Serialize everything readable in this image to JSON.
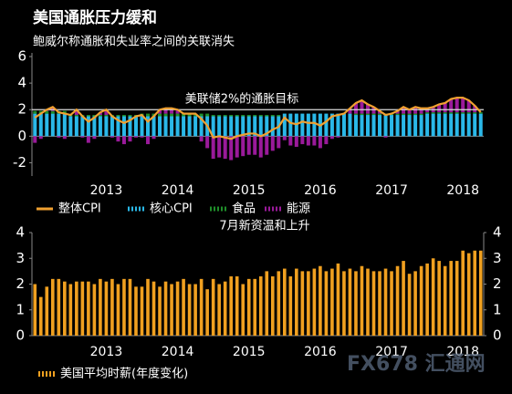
{
  "chart_data": [
    {
      "type": "bar",
      "stacked": true,
      "title": "美国通胀压力缓和",
      "subtitle": "鲍威尔称通胀和失业率之间的关联消失",
      "annotation": "美联储2%的通胀目标",
      "target_line": 2,
      "categories": [
        null,
        null,
        null,
        null,
        null,
        null,
        null,
        null,
        null,
        null,
        null,
        null,
        "2013",
        null,
        null,
        null,
        null,
        null,
        null,
        null,
        null,
        null,
        null,
        null,
        "2014",
        null,
        null,
        null,
        null,
        null,
        null,
        null,
        null,
        null,
        null,
        null,
        "2015",
        null,
        null,
        null,
        null,
        null,
        null,
        null,
        null,
        null,
        null,
        null,
        "2016",
        null,
        null,
        null,
        null,
        null,
        null,
        null,
        null,
        null,
        null,
        null,
        "2017",
        null,
        null,
        null,
        null,
        null,
        null,
        null,
        null,
        null,
        null,
        null,
        "2018",
        null,
        null,
        null
      ],
      "ylim": [
        -3,
        6
      ],
      "yticks": [
        -2,
        0,
        2,
        4,
        6
      ],
      "series": [
        {
          "name": "整体CPI",
          "type": "line",
          "color": "#f0a030",
          "values": [
            1.4,
            1.7,
            2.0,
            2.2,
            1.8,
            1.7,
            1.6,
            2.0,
            1.5,
            1.1,
            1.4,
            1.8,
            2.0,
            1.5,
            1.2,
            1.0,
            1.2,
            1.5,
            1.6,
            1.1,
            1.5,
            2.0,
            2.1,
            2.1,
            2.0,
            1.7,
            1.7,
            1.7,
            1.3,
            0.8,
            -0.1,
            0.0,
            -0.1,
            -0.2,
            0.0,
            0.1,
            0.2,
            0.2,
            0.0,
            0.2,
            0.5,
            0.7,
            1.4,
            1.0,
            0.9,
            1.1,
            1.0,
            1.0,
            0.8,
            1.1,
            1.5,
            1.6,
            1.7,
            2.1,
            2.5,
            2.7,
            2.4,
            2.2,
            1.9,
            1.6,
            1.7,
            1.9,
            2.2,
            2.0,
            2.2,
            2.1,
            2.1,
            2.2,
            2.4,
            2.5,
            2.8,
            2.9,
            2.9,
            2.7,
            2.3,
            1.8
          ]
        },
        {
          "name": "核心CPI",
          "type": "bar",
          "color": "#2ab8e8",
          "values": [
            1.7,
            1.7,
            1.7,
            1.7,
            1.7,
            1.7,
            1.5,
            1.5,
            1.5,
            1.5,
            1.5,
            1.5,
            1.5,
            1.5,
            1.5,
            1.5,
            1.5,
            1.5,
            1.5,
            1.5,
            1.5,
            1.5,
            1.5,
            1.5,
            1.5,
            1.5,
            1.5,
            1.5,
            1.5,
            1.5,
            1.5,
            1.5,
            1.5,
            1.5,
            1.5,
            1.5,
            1.5,
            1.5,
            1.5,
            1.5,
            1.5,
            1.5,
            1.7,
            1.7,
            1.7,
            1.7,
            1.7,
            1.7,
            1.7,
            1.7,
            1.7,
            1.7,
            1.7,
            1.7,
            1.6,
            1.6,
            1.6,
            1.6,
            1.6,
            1.6,
            1.6,
            1.6,
            1.6,
            1.6,
            1.6,
            1.6,
            1.7,
            1.7,
            1.7,
            1.7,
            1.7,
            1.7,
            1.7,
            1.7,
            1.7,
            1.7
          ]
        },
        {
          "name": "食品",
          "type": "bar",
          "color": "#1f8f2a",
          "values": [
            0.2,
            0.2,
            0.2,
            0.2,
            0.2,
            0.2,
            0.1,
            0.1,
            0.1,
            0.1,
            0.1,
            0.1,
            0.1,
            0.1,
            0.1,
            0.1,
            0.1,
            0.1,
            0.2,
            0.2,
            0.2,
            0.2,
            0.2,
            0.2,
            0.2,
            0.2,
            0.2,
            0.2,
            0.2,
            0.2,
            0.1,
            0.1,
            0.1,
            0.1,
            0.1,
            0.1,
            0.1,
            0.1,
            0.1,
            0.1,
            0.1,
            0.1,
            0,
            0,
            0,
            0,
            0,
            0,
            0,
            0,
            0,
            0,
            0,
            0,
            0.1,
            0.1,
            0.1,
            0.1,
            0.1,
            0.1,
            0.1,
            0.1,
            0.1,
            0.1,
            0.1,
            0.1,
            0.1,
            0.1,
            0.1,
            0.1,
            0.1,
            0.1,
            0.1,
            0.1,
            0.1,
            0.1
          ]
        },
        {
          "name": "能源",
          "type": "bar",
          "color": "#9a1a9a",
          "values": [
            -0.5,
            -0.2,
            0.1,
            0.3,
            -0.1,
            -0.2,
            0,
            0.4,
            -0.1,
            -0.5,
            -0.2,
            0.2,
            0.4,
            -0.1,
            -0.4,
            -0.6,
            -0.4,
            -0.1,
            -0.1,
            -0.6,
            -0.2,
            0.3,
            0.4,
            0.4,
            0.3,
            0,
            0,
            0,
            -0.4,
            -0.9,
            -1.7,
            -1.6,
            -1.7,
            -1.8,
            -1.6,
            -1.5,
            -1.4,
            -1.4,
            -1.6,
            -1.4,
            -1.1,
            -0.9,
            -0.3,
            -0.7,
            -0.8,
            -0.6,
            -0.7,
            -0.7,
            -0.9,
            -0.6,
            -0.2,
            -0.1,
            0,
            0.4,
            0.8,
            1.0,
            0.7,
            0.5,
            0.2,
            -0.1,
            0,
            0.2,
            0.5,
            0.3,
            0.5,
            0.4,
            0.3,
            0.4,
            0.6,
            0.7,
            1.0,
            1.1,
            1.1,
            0.9,
            0.5,
            0
          ]
        }
      ]
    },
    {
      "type": "bar",
      "annotation": "7月新资温和上升",
      "watermark": "FX678 汇通网",
      "categories": [
        null,
        null,
        null,
        null,
        null,
        null,
        null,
        null,
        null,
        null,
        null,
        null,
        "2013",
        null,
        null,
        null,
        null,
        null,
        null,
        null,
        null,
        null,
        null,
        null,
        "2014",
        null,
        null,
        null,
        null,
        null,
        null,
        null,
        null,
        null,
        null,
        null,
        "2015",
        null,
        null,
        null,
        null,
        null,
        null,
        null,
        null,
        null,
        null,
        null,
        "2016",
        null,
        null,
        null,
        null,
        null,
        null,
        null,
        null,
        null,
        null,
        null,
        "2017",
        null,
        null,
        null,
        null,
        null,
        null,
        null,
        null,
        null,
        null,
        null,
        "2018",
        null,
        null,
        null
      ],
      "ylim": [
        0,
        4
      ],
      "yticks": [
        0,
        1,
        2,
        3,
        4
      ],
      "y2lim": [
        0,
        4
      ],
      "y2ticks": [
        0,
        1,
        2,
        3,
        4
      ],
      "series": [
        {
          "name": "美国平均时薪(年度变化)",
          "color": "#f0a020",
          "values": [
            2.0,
            1.5,
            1.9,
            2.2,
            2.2,
            2.1,
            2.0,
            2.1,
            2.1,
            2.1,
            2.0,
            2.2,
            2.1,
            2.2,
            2.0,
            2.2,
            2.2,
            1.9,
            1.9,
            2.2,
            2.1,
            1.9,
            2.1,
            2.0,
            2.1,
            2.2,
            2.0,
            2.0,
            2.2,
            1.8,
            2.2,
            2.0,
            2.1,
            2.3,
            2.3,
            2.0,
            2.2,
            2.2,
            2.3,
            2.5,
            2.3,
            2.5,
            2.6,
            2.3,
            2.6,
            2.5,
            2.5,
            2.6,
            2.7,
            2.5,
            2.6,
            2.8,
            2.5,
            2.6,
            2.5,
            2.7,
            2.6,
            2.5,
            2.5,
            2.6,
            2.5,
            2.7,
            2.9,
            2.4,
            2.5,
            2.7,
            2.8,
            3.0,
            2.9,
            2.7,
            2.9,
            2.9,
            3.3,
            3.2,
            3.3,
            3.3
          ]
        }
      ]
    }
  ]
}
